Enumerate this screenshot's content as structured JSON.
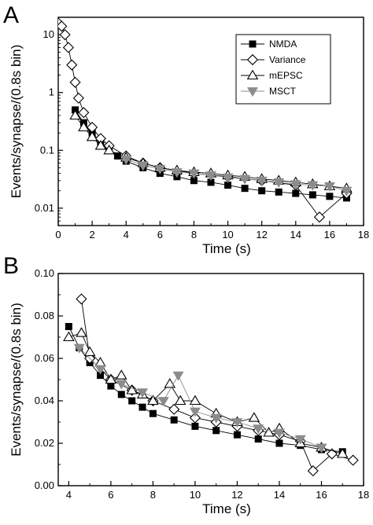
{
  "chart_data": [
    {
      "panel": "A",
      "type": "scatter",
      "xlabel": "Time (s)",
      "ylabel": "Events/synapse/(0.8s bin)",
      "xlim": [
        0,
        18
      ],
      "ylim": [
        0.005,
        20
      ],
      "yscale": "log",
      "x_ticks": [
        0,
        2,
        4,
        6,
        8,
        10,
        12,
        14,
        16,
        18
      ],
      "y_ticks": [
        0.01,
        0.1,
        1,
        10
      ],
      "y_tick_labels": [
        "0.01",
        "0.1",
        "1",
        "10"
      ],
      "grid": false,
      "legend": "top-right",
      "series": [
        {
          "name": "NMDA",
          "marker": "square",
          "color": "#000000",
          "x": [
            1,
            1.5,
            2,
            2.5,
            3,
            3.5,
            4,
            5,
            6,
            7,
            8,
            9,
            10,
            11,
            12,
            13,
            14,
            15,
            16,
            17
          ],
          "y": [
            0.5,
            0.3,
            0.2,
            0.14,
            0.1,
            0.08,
            0.065,
            0.05,
            0.04,
            0.035,
            0.03,
            0.028,
            0.025,
            0.022,
            0.02,
            0.019,
            0.018,
            0.017,
            0.016,
            0.015
          ]
        },
        {
          "name": "Variance",
          "marker": "diamond-open",
          "color": "#000000",
          "x": [
            0,
            0.2,
            0.4,
            0.6,
            0.8,
            1,
            1.2,
            1.5,
            2,
            2.5,
            3,
            4,
            5,
            6,
            8,
            10,
            12,
            14,
            15.4,
            17
          ],
          "y": [
            16,
            14,
            10,
            6,
            3,
            1.5,
            0.8,
            0.45,
            0.25,
            0.16,
            0.12,
            0.08,
            0.06,
            0.05,
            0.04,
            0.035,
            0.03,
            0.025,
            0.007,
            0.018
          ]
        },
        {
          "name": "mEPSC",
          "marker": "triangle-up-open",
          "color": "#000000",
          "x": [
            1,
            1.5,
            2,
            2.5,
            3,
            4,
            5,
            6,
            7,
            8,
            9,
            10,
            11,
            12,
            13,
            14,
            15,
            16,
            17
          ],
          "y": [
            0.4,
            0.25,
            0.17,
            0.12,
            0.1,
            0.075,
            0.06,
            0.05,
            0.045,
            0.042,
            0.04,
            0.037,
            0.035,
            0.032,
            0.03,
            0.028,
            0.026,
            0.024,
            0.022
          ]
        },
        {
          "name": "MSCT",
          "marker": "triangle-down",
          "color": "#8c8c8c",
          "x": [
            4,
            5,
            6,
            7,
            8,
            9,
            10,
            11,
            12,
            13,
            14,
            15,
            16,
            17
          ],
          "y": [
            0.07,
            0.055,
            0.048,
            0.042,
            0.04,
            0.037,
            0.034,
            0.032,
            0.03,
            0.028,
            0.026,
            0.025,
            0.024,
            0.02
          ]
        }
      ]
    },
    {
      "panel": "B",
      "type": "scatter",
      "xlabel": "Time (s)",
      "ylabel": "Events/synapse/(0.8s bin)",
      "xlim": [
        3.5,
        18
      ],
      "ylim": [
        0,
        0.1
      ],
      "yscale": "linear",
      "x_ticks": [
        4,
        6,
        8,
        10,
        12,
        14,
        16,
        18
      ],
      "y_ticks": [
        0,
        0.02,
        0.04,
        0.06,
        0.08,
        0.1
      ],
      "y_tick_labels": [
        "0.00",
        "0.02",
        "0.04",
        "0.06",
        "0.08",
        "0.10"
      ],
      "grid": false,
      "series": [
        {
          "name": "NMDA",
          "marker": "square",
          "color": "#000000",
          "x": [
            4,
            4.5,
            5,
            5.5,
            6,
            6.5,
            7,
            7.5,
            8,
            9,
            10,
            11,
            12,
            13,
            14,
            15,
            16,
            17
          ],
          "y": [
            0.075,
            0.065,
            0.058,
            0.052,
            0.047,
            0.043,
            0.04,
            0.037,
            0.034,
            0.031,
            0.028,
            0.026,
            0.024,
            0.022,
            0.02,
            0.019,
            0.017,
            0.016
          ]
        },
        {
          "name": "Variance",
          "marker": "diamond-open",
          "color": "#000000",
          "x": [
            4.6,
            5,
            6,
            7,
            8,
            9,
            10,
            11,
            12,
            13,
            14,
            15,
            15.6,
            16.5,
            17.5
          ],
          "y": [
            0.088,
            0.06,
            0.05,
            0.045,
            0.04,
            0.036,
            0.032,
            0.03,
            0.028,
            0.026,
            0.024,
            0.021,
            0.007,
            0.015,
            0.012
          ]
        },
        {
          "name": "mEPSC",
          "marker": "triangle-up-open",
          "color": "#000000",
          "x": [
            4,
            4.6,
            5,
            5.5,
            6,
            6.5,
            7,
            7.5,
            8,
            8.8,
            9.3,
            10,
            11,
            12,
            12.8,
            13.5,
            14,
            15,
            16,
            17
          ],
          "y": [
            0.07,
            0.072,
            0.063,
            0.058,
            0.05,
            0.052,
            0.045,
            0.043,
            0.04,
            0.048,
            0.04,
            0.04,
            0.034,
            0.03,
            0.032,
            0.025,
            0.027,
            0.02,
            0.018,
            0.015
          ]
        },
        {
          "name": "MSCT",
          "marker": "triangle-down",
          "color": "#8c8c8c",
          "x": [
            4.5,
            5.5,
            6.5,
            7.5,
            8.5,
            9.2,
            10,
            11,
            12,
            13,
            14,
            15,
            16
          ],
          "y": [
            0.065,
            0.055,
            0.048,
            0.044,
            0.04,
            0.052,
            0.035,
            0.032,
            0.03,
            0.027,
            0.025,
            0.022,
            0.018
          ]
        }
      ]
    }
  ]
}
